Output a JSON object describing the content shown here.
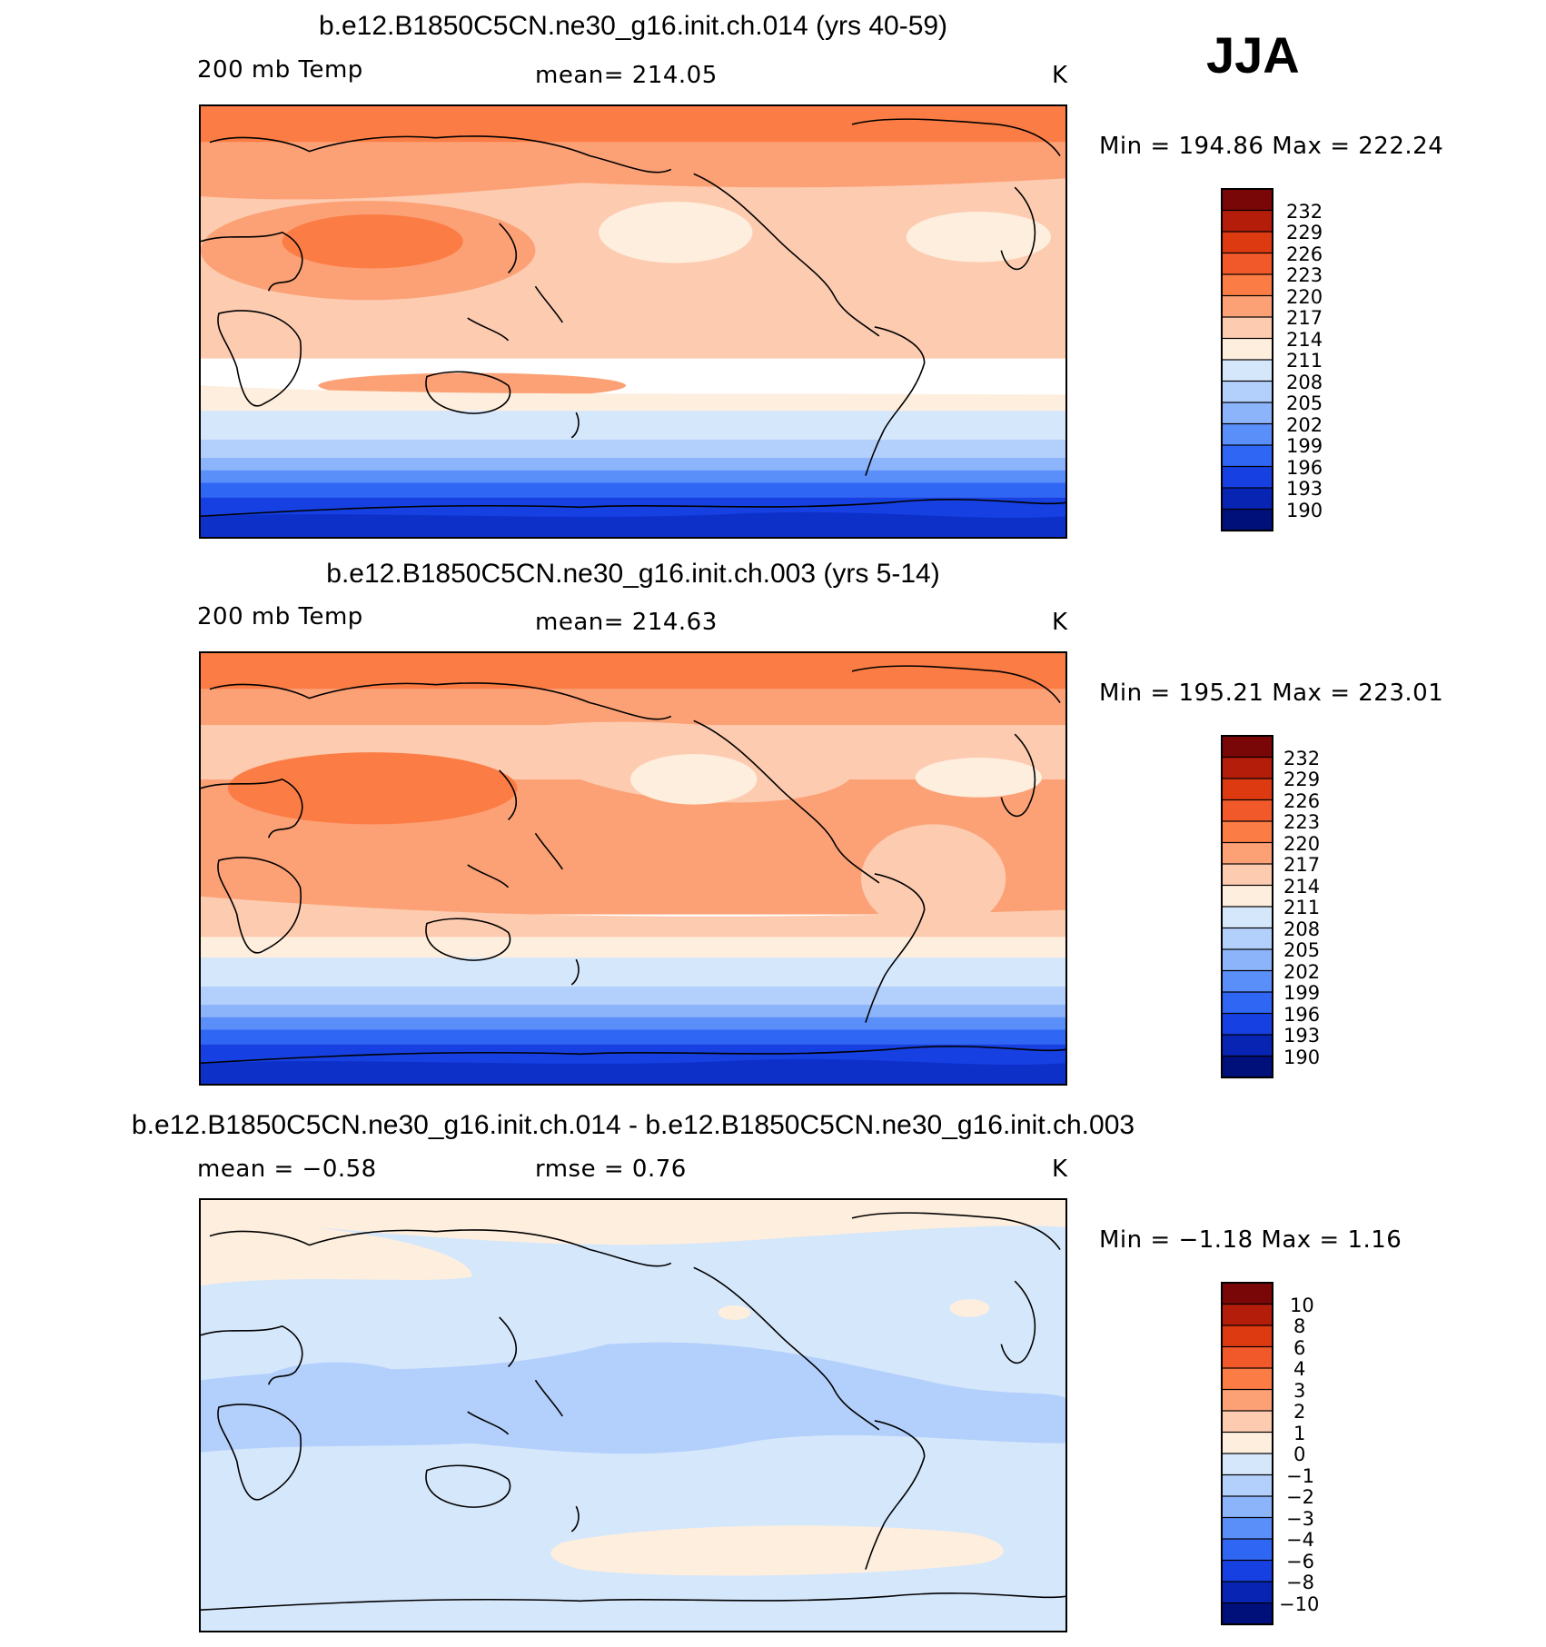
{
  "season": "JJA",
  "panels": [
    {
      "title": "b.e12.B1850C5CN.ne30_g16.init.ch.014 (yrs 40-59)",
      "left_label": "200 mb Temp",
      "center_label": "mean=  214.05",
      "units": "K",
      "minmax": "Min  =  194.86  Max  =  222.24",
      "colorbar_labels": [
        "232",
        "229",
        "226",
        "223",
        "220",
        "217",
        "214",
        "211",
        "208",
        "205",
        "202",
        "199",
        "196",
        "193",
        "190"
      ]
    },
    {
      "title": "b.e12.B1850C5CN.ne30_g16.init.ch.003 (yrs 5-14)",
      "left_label": "200 mb Temp",
      "center_label": "mean=  214.63",
      "units": "K",
      "minmax": "Min  =  195.21  Max  =  223.01",
      "colorbar_labels": [
        "232",
        "229",
        "226",
        "223",
        "220",
        "217",
        "214",
        "211",
        "208",
        "205",
        "202",
        "199",
        "196",
        "193",
        "190"
      ]
    },
    {
      "title": "b.e12.B1850C5CN.ne30_g16.init.ch.014 - b.e12.B1850C5CN.ne30_g16.init.ch.003",
      "left_label": "mean  =    −0.58",
      "center_label": "rmse  =     0.76",
      "units": "K",
      "minmax": "Min  =    −1.18  Max  =     1.16",
      "colorbar_labels": [
        "10",
        "8",
        "6",
        "4",
        "3",
        "2",
        "1",
        "0",
        "−1",
        "−2",
        "−3",
        "−4",
        "−6",
        "−8",
        "−10"
      ]
    }
  ],
  "colors": {
    "temp_scale": [
      "#7a0707",
      "#b31d0a",
      "#dd3a12",
      "#f2592a",
      "#fb7d45",
      "#fca176",
      "#fdcbb0",
      "#feeede",
      "#d5e7fb",
      "#b3cffb",
      "#8cb4fb",
      "#5a8ef9",
      "#2f66f4",
      "#1640e2",
      "#0824b3",
      "#00107a"
    ],
    "diff_scale": [
      "#7a0707",
      "#b31d0a",
      "#dd3a12",
      "#f2592a",
      "#fb7d45",
      "#fca176",
      "#fdcbb0",
      "#feeede",
      "#d5e7fb",
      "#b3cffb",
      "#8cb4fb",
      "#5a8ef9",
      "#2f66f4",
      "#1640e2",
      "#0824b3",
      "#00107a"
    ]
  }
}
